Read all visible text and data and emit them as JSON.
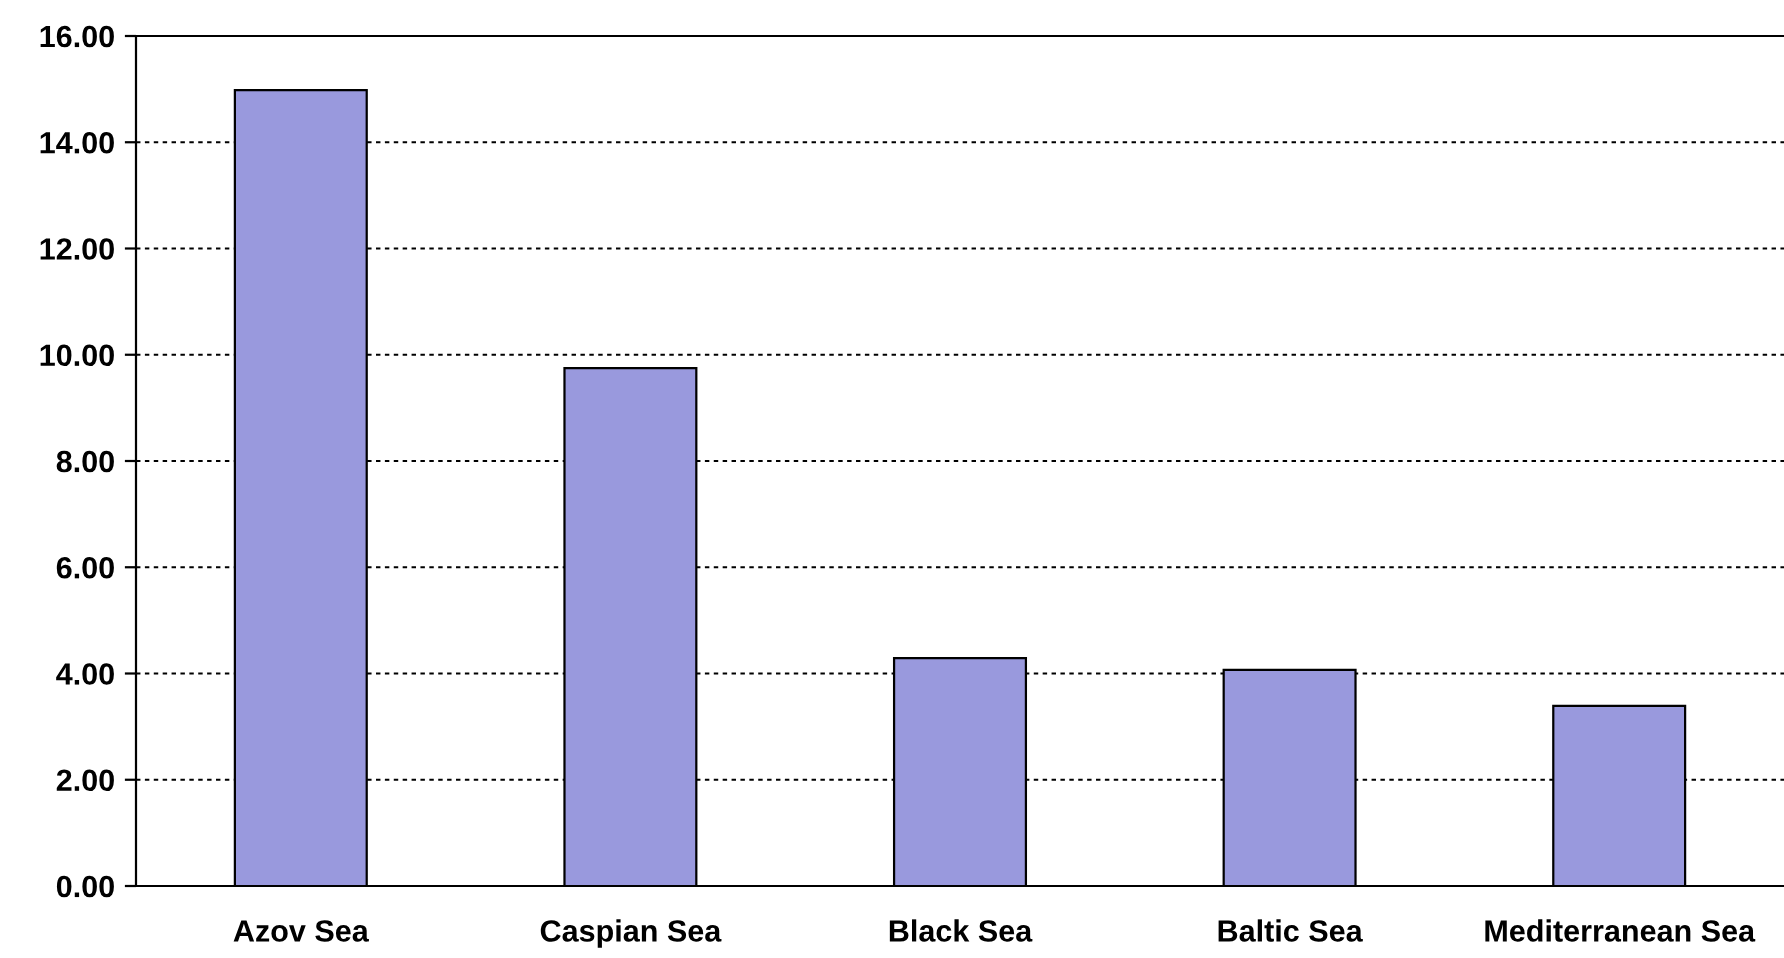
{
  "chart_data": {
    "type": "bar",
    "categories": [
      "Azov Sea",
      "Caspian Sea",
      "Black Sea",
      "Baltic Sea",
      "Mediterranean Sea"
    ],
    "values": [
      14.98,
      9.75,
      4.29,
      4.07,
      3.39
    ],
    "color": "#9999dd",
    "ylim": [
      0,
      16
    ],
    "yticks": [
      {
        "value": 0,
        "label": "0.00"
      },
      {
        "value": 2,
        "label": "2.00"
      },
      {
        "value": 4,
        "label": "4.00"
      },
      {
        "value": 6,
        "label": "6.00"
      },
      {
        "value": 8,
        "label": "8.00"
      },
      {
        "value": 10,
        "label": "10.00"
      },
      {
        "value": 12,
        "label": "12.00"
      },
      {
        "value": 14,
        "label": "14.00"
      },
      {
        "value": 16,
        "label": "16.00"
      }
    ],
    "grid": "y",
    "legend": false
  }
}
